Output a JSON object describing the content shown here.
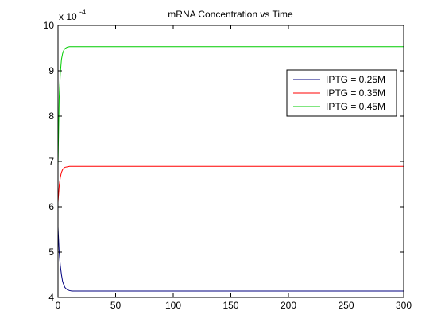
{
  "chart_data": {
    "type": "line",
    "title": "mRNA Concentration vs Time",
    "xlabel": "",
    "ylabel": "",
    "xlim": [
      0,
      300
    ],
    "ylim": [
      4,
      10
    ],
    "y_multiplier_base": "x 10",
    "y_multiplier_exponent": "-4",
    "xticks": [
      0,
      50,
      100,
      150,
      200,
      250,
      300
    ],
    "yticks": [
      4,
      5,
      6,
      7,
      8,
      9,
      10
    ],
    "grid": false,
    "legend_position": "top-right",
    "series": [
      {
        "name": "IPTG = 0.25M",
        "color": "#00007f",
        "x": [
          0,
          1,
          2,
          3,
          4,
          5,
          6,
          8,
          10,
          12,
          15,
          20,
          30,
          50,
          100,
          150,
          200,
          250,
          300
        ],
        "y": [
          5.55,
          5.0,
          4.7,
          4.5,
          4.35,
          4.28,
          4.22,
          4.17,
          4.15,
          4.14,
          4.14,
          4.14,
          4.14,
          4.14,
          4.14,
          4.14,
          4.14,
          4.14,
          4.14
        ]
      },
      {
        "name": "IPTG = 0.35M",
        "color": "#ff0000",
        "x": [
          0,
          1,
          2,
          3,
          4,
          5,
          6,
          8,
          10,
          12,
          15,
          20,
          30,
          50,
          100,
          150,
          200,
          250,
          300
        ],
        "y": [
          6.1,
          6.45,
          6.65,
          6.76,
          6.82,
          6.85,
          6.87,
          6.88,
          6.89,
          6.89,
          6.89,
          6.89,
          6.89,
          6.89,
          6.89,
          6.89,
          6.89,
          6.89,
          6.89
        ]
      },
      {
        "name": "IPTG = 0.45M",
        "color": "#00cc00",
        "x": [
          0,
          1,
          2,
          3,
          4,
          5,
          6,
          8,
          10,
          12,
          15,
          20,
          30,
          50,
          100,
          150,
          200,
          250,
          300
        ],
        "y": [
          6.9,
          8.4,
          8.95,
          9.25,
          9.38,
          9.45,
          9.49,
          9.52,
          9.53,
          9.53,
          9.53,
          9.53,
          9.53,
          9.53,
          9.53,
          9.53,
          9.53,
          9.53,
          9.53
        ]
      }
    ]
  }
}
